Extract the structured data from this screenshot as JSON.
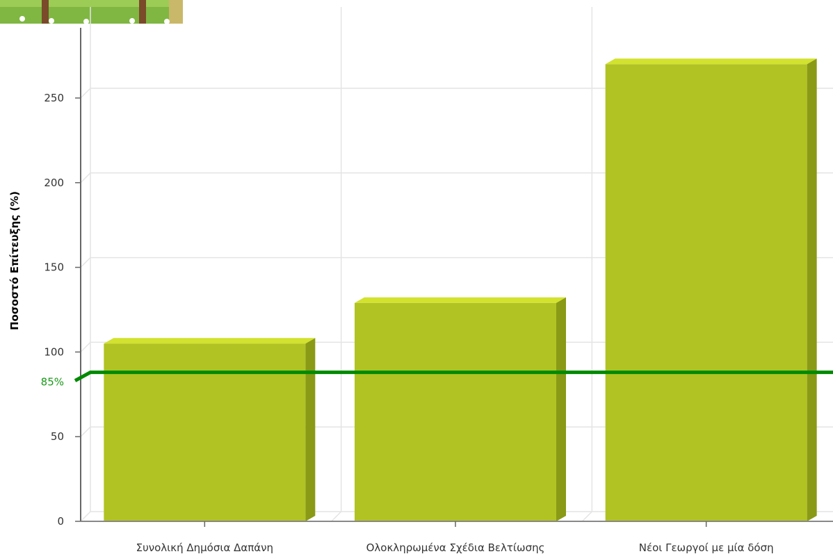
{
  "chart_data": {
    "type": "bar",
    "categories": [
      "Συνολική Δημόσια Δαπάνη",
      "Ολοκληρωμένα Σχέδια Βελτίωσης",
      "Νέοι Γεωργοί με μία δόση"
    ],
    "values": [
      105,
      129,
      270
    ],
    "title": "",
    "xlabel": "",
    "ylabel": "Ποσοστό Επίτευξης (%)",
    "ylim": [
      0,
      300
    ],
    "yticks": [
      0,
      50,
      100,
      150,
      200,
      250
    ],
    "grid": true,
    "reference_line": {
      "value": 88,
      "label": "85%",
      "color": "#008a00"
    },
    "bar_color": "#b1c322",
    "bar_top_color": "#d2e22e",
    "bar_side_color": "#8a9a16"
  }
}
